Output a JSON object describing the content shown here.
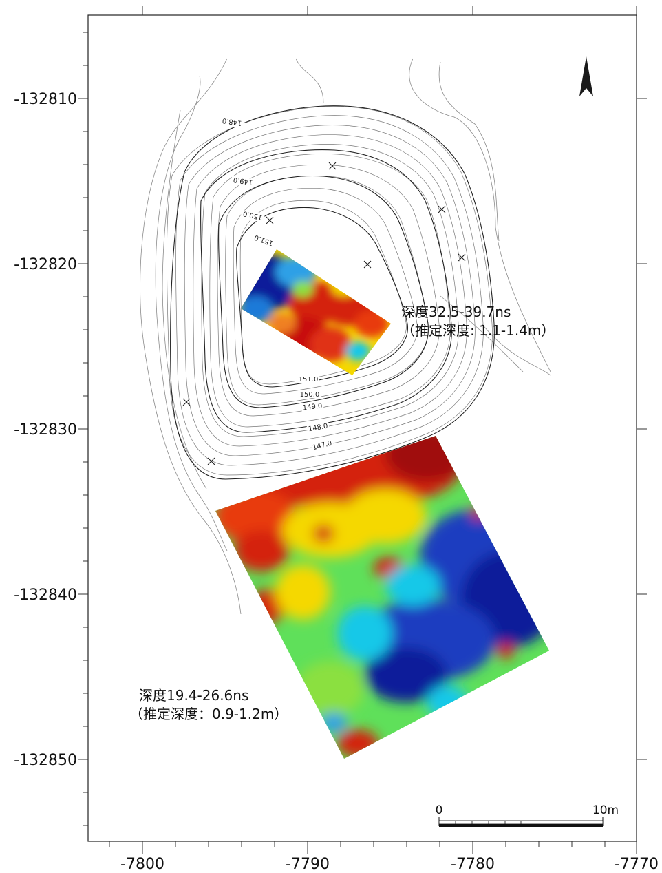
{
  "axes": {
    "x_ticks": [
      "-7800",
      "-7790",
      "-7780",
      "-7770"
    ],
    "y_ticks": [
      "-132810",
      "-132820",
      "-132830",
      "-132840",
      "-132850"
    ]
  },
  "contour_labels": [
    "148.0",
    "149.0",
    "150.0",
    "151.0",
    "151.0",
    "150.0",
    "149.0",
    "148.0",
    "147.0"
  ],
  "annotations": {
    "upper": {
      "line1": "深度32.5-39.7ns",
      "line2": "（推定深度: 1.1-1.4m）"
    },
    "lower": {
      "line1": "深度19.4-26.6ns",
      "line2": "（推定深度：0.9-1.2m）"
    }
  },
  "scale_bar": {
    "start_label": "0",
    "end_label": "10m"
  },
  "north_arrow": {
    "icon": "north-arrow-icon"
  },
  "colors": {
    "high": "#c81010",
    "mid_high": "#f5d800",
    "mid": "#5fe05a",
    "mid_low": "#18c8e8",
    "low": "#0a1f9a"
  }
}
